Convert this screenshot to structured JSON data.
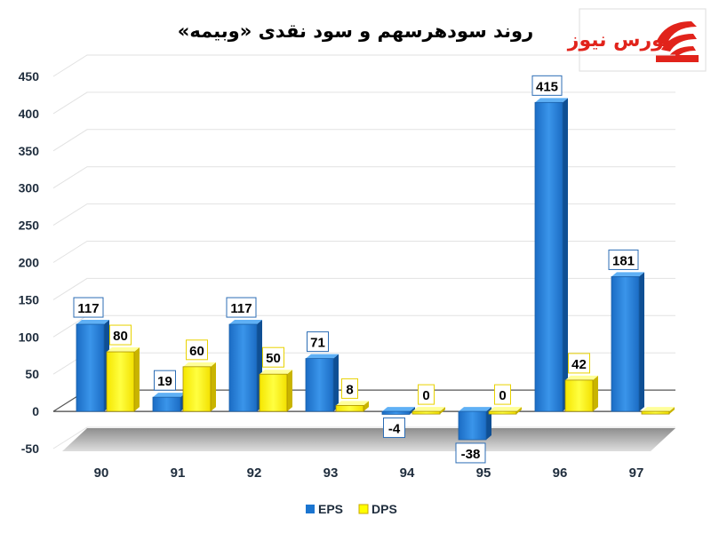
{
  "chart_data": {
    "type": "bar",
    "title": "روند سودهرسهم و سود نقدی «وبیمه»",
    "categories": [
      "90",
      "91",
      "92",
      "93",
      "94",
      "95",
      "96",
      "97"
    ],
    "series": [
      {
        "name": "EPS",
        "values": [
          117,
          19,
          117,
          71,
          -4,
          -38,
          415,
          181
        ]
      },
      {
        "name": "DPS",
        "values": [
          80,
          60,
          50,
          8,
          0,
          0,
          42,
          0
        ]
      }
    ],
    "y_ticks": [
      "450",
      "400",
      "350",
      "300",
      "250",
      "200",
      "150",
      "100",
      "50",
      "0",
      "-50"
    ],
    "ylim": [
      -50,
      450
    ],
    "grid": true,
    "legend_position": "bottom",
    "data_labels": {
      "EPS": [
        "117",
        "19",
        "117",
        "71",
        "-4",
        "-38",
        "415",
        "181"
      ],
      "DPS": [
        "80",
        "60",
        "50",
        "8",
        "0",
        "0",
        "42",
        ""
      ]
    },
    "colors": {
      "EPS": "#1b75d0",
      "DPS": "#ffff00"
    }
  },
  "logo": {
    "text": "بورس نیوز",
    "color": "#e1231b"
  }
}
